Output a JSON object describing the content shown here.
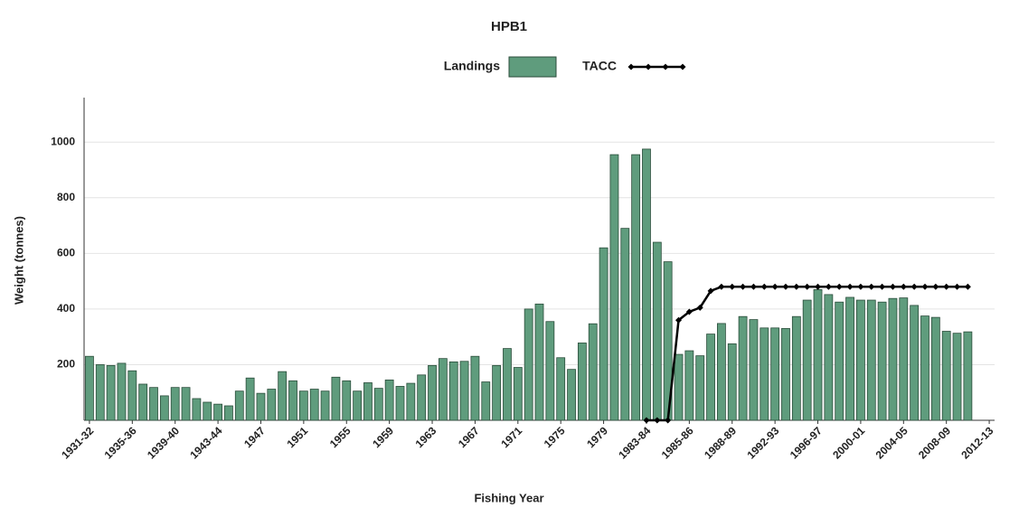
{
  "chart_data": {
    "type": "bar",
    "title": "HPB1",
    "x_label": "Fishing Year",
    "y_label": "Weight (tonnes)",
    "categories": [
      "1931-32",
      null,
      null,
      null,
      "1935-36",
      null,
      null,
      null,
      "1939-40",
      null,
      null,
      null,
      "1943-44",
      null,
      null,
      null,
      "1947",
      null,
      null,
      null,
      "1951",
      null,
      null,
      null,
      "1955",
      null,
      null,
      null,
      "1959",
      null,
      null,
      null,
      "1963",
      null,
      null,
      null,
      "1967",
      null,
      null,
      null,
      "1971",
      null,
      null,
      null,
      "1975",
      null,
      null,
      null,
      "1979",
      null,
      null,
      null,
      "1983-84",
      null,
      null,
      null,
      "1985-86",
      null,
      null,
      null,
      "1988-89",
      null,
      null,
      null,
      "1992-93",
      null,
      null,
      null,
      "1996-97",
      null,
      null,
      null,
      "2000-01",
      null,
      null,
      null,
      "2004-05",
      null,
      null,
      null,
      "2008-09",
      null,
      null,
      null,
      "2012-13"
    ],
    "series": [
      {
        "name": "Landings",
        "color": "#5f9c7d",
        "values": [
          230,
          200,
          197,
          205,
          178,
          130,
          118,
          88,
          118,
          118,
          78,
          65,
          58,
          52,
          105,
          152,
          97,
          112,
          175,
          142,
          105,
          112,
          105,
          155,
          142,
          105,
          135,
          115,
          145,
          122,
          133,
          163,
          197,
          222,
          210,
          212,
          230,
          138,
          197,
          258,
          190,
          400,
          418,
          355,
          225,
          183,
          278,
          347,
          620,
          955,
          690,
          955,
          975,
          640,
          570,
          237,
          250,
          232,
          310,
          348,
          275,
          373,
          362,
          332,
          332,
          330,
          373,
          432,
          470,
          452,
          425,
          442,
          432,
          432,
          425,
          438,
          440,
          413,
          375,
          370,
          320,
          313,
          318,
          null,
          null
        ]
      },
      {
        "name": "TACC",
        "type": "line",
        "color": "#000000",
        "values": [
          null,
          null,
          null,
          null,
          null,
          null,
          null,
          null,
          null,
          null,
          null,
          null,
          null,
          null,
          null,
          null,
          null,
          null,
          null,
          null,
          null,
          null,
          null,
          null,
          null,
          null,
          null,
          null,
          null,
          null,
          null,
          null,
          null,
          null,
          null,
          null,
          null,
          null,
          null,
          null,
          null,
          null,
          null,
          null,
          null,
          null,
          null,
          null,
          null,
          null,
          null,
          null,
          0,
          0,
          0,
          360,
          390,
          405,
          465,
          480,
          480,
          480,
          480,
          480,
          480,
          480,
          480,
          480,
          480,
          480,
          480,
          480,
          480,
          480,
          480,
          480,
          480,
          480,
          480,
          480,
          480,
          480,
          480,
          null,
          null
        ]
      }
    ],
    "ylim": [
      0,
      1160
    ],
    "yticks": [
      200,
      400,
      600,
      800,
      1000
    ],
    "grid": true
  }
}
